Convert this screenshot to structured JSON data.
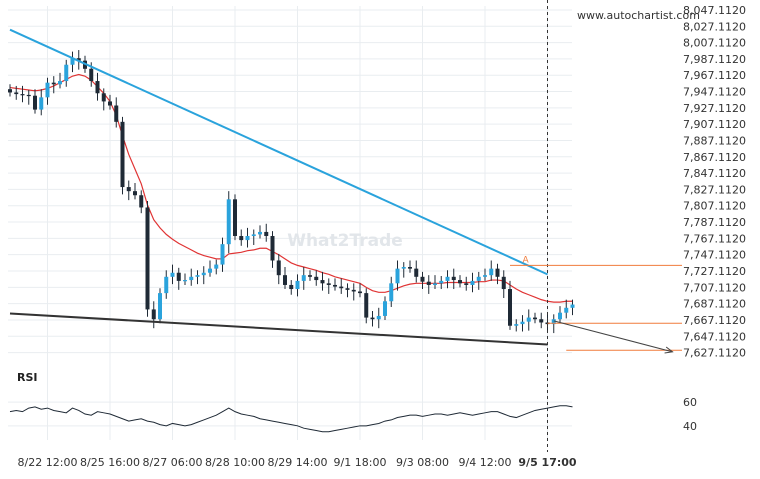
{
  "watermark": {
    "site": "www.autochartist.com",
    "brand": "What2Trade"
  },
  "chart_data": {
    "type": "candlestick",
    "instrument_note": "",
    "price_axis": {
      "ticks": [
        "8,047.1120",
        "8,027.1120",
        "8,007.1120",
        "7,987.1120",
        "7,967.1120",
        "7,947.1120",
        "7,927.1120",
        "7,907.1120",
        "7,887.1120",
        "7,867.1120",
        "7,847.1120",
        "7,827.1120",
        "7,807.1120",
        "7,787.1120",
        "7,767.1120",
        "7,747.1120",
        "7,727.1120",
        "7,707.1120",
        "7,687.1120",
        "7,667.1120",
        "7,647.1120",
        "7,627.1120"
      ],
      "tick_values": [
        8047.112,
        8027.112,
        8007.112,
        7987.112,
        7967.112,
        7947.112,
        7927.112,
        7907.112,
        7887.112,
        7867.112,
        7847.112,
        7827.112,
        7807.112,
        7787.112,
        7767.112,
        7747.112,
        7727.112,
        7707.112,
        7687.112,
        7667.112,
        7647.112,
        7627.112
      ],
      "range": [
        7618,
        8052
      ]
    },
    "time_axis": {
      "labels": [
        "8/22 12:00",
        "8/25 16:00",
        "8/27 06:00",
        "8/28 10:00",
        "8/29 14:00",
        "9/1 18:00",
        "9/3 08:00",
        "9/4 12:00",
        "9/5 17:00"
      ],
      "label_positions_bar": [
        6,
        16,
        26,
        36,
        46,
        56,
        66,
        76,
        86
      ],
      "current_label": "9/5 17:00"
    },
    "bars": 91,
    "bar_index_current": 86,
    "closes": [
      7946,
      7944,
      7943,
      7942,
      7925,
      7940,
      7958,
      7956,
      7960,
      7980,
      7988,
      7985,
      7975,
      7960,
      7945,
      7935,
      7930,
      7910,
      7830,
      7825,
      7820,
      7805,
      7680,
      7668,
      7700,
      7720,
      7725,
      7715,
      7716,
      7720,
      7722,
      7725,
      7730,
      7735,
      7760,
      7815,
      7770,
      7765,
      7770,
      7772,
      7775,
      7770,
      7740,
      7722,
      7710,
      7705,
      7715,
      7722,
      7720,
      7716,
      7712,
      7710,
      7708,
      7706,
      7704,
      7702,
      7700,
      7670,
      7668,
      7672,
      7690,
      7712,
      7730,
      7732,
      7730,
      7720,
      7714,
      7710,
      7712,
      7715,
      7720,
      7716,
      7712,
      7710,
      7715,
      7720,
      7722,
      7730,
      7720,
      7705,
      7660,
      7662,
      7665,
      7670,
      7668,
      7664,
      7662,
      7668,
      7676,
      7682,
      7686
    ],
    "moving_average": [
      7952,
      7951,
      7950,
      7949,
      7948,
      7949,
      7951,
      7954,
      7958,
      7962,
      7966,
      7968,
      7966,
      7961,
      7953,
      7945,
      7935,
      7918,
      7893,
      7870,
      7852,
      7834,
      7808,
      7790,
      7780,
      7772,
      7766,
      7761,
      7757,
      7753,
      7749,
      7746,
      7744,
      7742,
      7742,
      7748,
      7749,
      7750,
      7752,
      7753,
      7755,
      7755,
      7751,
      7747,
      7742,
      7737,
      7734,
      7732,
      7730,
      7728,
      7725,
      7723,
      7720,
      7718,
      7716,
      7714,
      7712,
      7707,
      7703,
      7701,
      7701,
      7703,
      7706,
      7709,
      7711,
      7712,
      7712,
      7712,
      7712,
      7712,
      7713,
      7713,
      7713,
      7713,
      7713,
      7714,
      7714,
      7716,
      7716,
      7715,
      7710,
      7705,
      7701,
      7698,
      7695,
      7692,
      7690,
      7689,
      7689,
      7690,
      7690
    ],
    "rsi": {
      "label": "RSI",
      "ticks": [
        "60",
        "40"
      ],
      "tick_values": [
        60,
        40
      ],
      "range": [
        28,
        72
      ],
      "values": [
        52,
        53,
        52,
        55,
        56,
        54,
        55,
        53,
        52,
        51,
        55,
        53,
        50,
        49,
        52,
        51,
        50,
        48,
        46,
        44,
        45,
        46,
        44,
        43,
        41,
        40,
        42,
        41,
        40,
        41,
        43,
        45,
        47,
        49,
        52,
        55,
        52,
        50,
        49,
        48,
        46,
        45,
        44,
        43,
        42,
        41,
        40,
        38,
        37,
        36,
        35,
        35,
        36,
        37,
        38,
        39,
        40,
        40,
        41,
        42,
        44,
        45,
        47,
        48,
        49,
        49,
        48,
        49,
        50,
        50,
        49,
        50,
        51,
        50,
        49,
        50,
        51,
        52,
        52,
        50,
        48,
        47,
        49,
        51,
        53,
        54,
        55,
        56,
        57,
        57,
        56
      ]
    },
    "pattern": {
      "name": "falling wedge",
      "resistance": {
        "from": {
          "bar": 0,
          "price": 8023
        },
        "to": {
          "bar": 86,
          "price": 7723
        }
      },
      "support": {
        "from": {
          "bar": 0,
          "price": 7675
        },
        "to": {
          "bar": 86,
          "price": 7637
        }
      },
      "projection": {
        "from": {
          "bar": 87,
          "price": 7666
        },
        "to": {
          "bar": 106,
          "price": 7628
        }
      },
      "levels": [
        {
          "price": 7734
        },
        {
          "price": 7663
        },
        {
          "price": 7630
        }
      ],
      "point_label": "A"
    }
  }
}
